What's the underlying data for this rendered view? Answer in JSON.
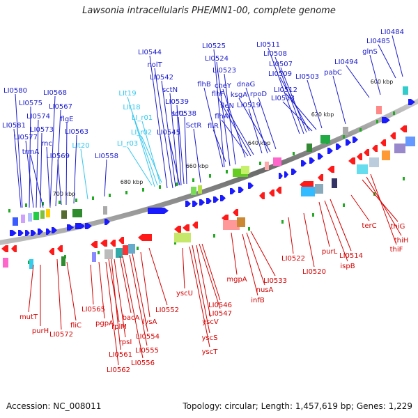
{
  "title": "Lawsonia intracellularis PHE/MN1-00, complete genome",
  "footer": {
    "accession": "Accession: NC_008011",
    "topology": "Topology: circular; Length: 1,457,619 bp; Genes: 1,229"
  },
  "colors": {
    "forward_label": "#1a1acc",
    "reverse_label": "#d40000",
    "rna_label": "#33c6ee",
    "forward_gene": "#1a1aff",
    "reverse_gene": "#ff1a1a",
    "backbone": "#7a7a7a",
    "tick": "#22aa22"
  },
  "ticks": [
    "600 kbp",
    "620 kbp",
    "640 kbp",
    "660 kbp",
    "680 kbp",
    "700 kbp"
  ],
  "forward_labels": [
    "LI0580",
    "LI0575",
    "LI0581",
    "LI0574",
    "LI0577",
    "LI0568",
    "LI0567",
    "LI0573",
    "trmA",
    "rnc",
    "flgE",
    "LI0569",
    "LI0563",
    "LI0558",
    "LI0544",
    "nolT",
    "LI0542",
    "sctN",
    "LI0539",
    "sctL",
    "LI0538",
    "LI0545",
    "SctR",
    "LI0525",
    "LI0524",
    "LI0523",
    "flhB",
    "cheY",
    "flhF",
    "fleN",
    "flhA",
    "fliR",
    "dnaG",
    "ksgA",
    "rpoD",
    "LI0519",
    "LI0511",
    "LI0508",
    "LI0507",
    "LI0509",
    "LI0503",
    "LI0512",
    "LI0513",
    "pabC",
    "LI0494",
    "glnS",
    "LI0485",
    "LI0484"
  ],
  "rna_labels": [
    "LIt19",
    "LIt18",
    "LI_r01",
    "LI_r02",
    "LI_r03",
    "LIt20"
  ],
  "reverse_labels": [
    "mutT",
    "purH",
    "LI0572",
    "fliC",
    "LI0565",
    "pgpA",
    "rplM",
    "rpsI",
    "LI0561",
    "LI0562",
    "bacA",
    "LI0554",
    "LI0555",
    "LI0556",
    "lysA",
    "LI0552",
    "yscU",
    "LI0546",
    "LI0547",
    "yscV",
    "yscS",
    "yscT",
    "mgpA",
    "LI0533",
    "nusA",
    "infB",
    "LI0522",
    "LI0520",
    "purL",
    "LI0514",
    "ispB",
    "terC",
    "thiG",
    "thiH",
    "thiF"
  ]
}
